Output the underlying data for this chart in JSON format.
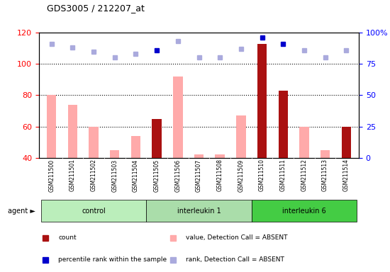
{
  "title": "GDS3005 / 212207_at",
  "samples": [
    "GSM211500",
    "GSM211501",
    "GSM211502",
    "GSM211503",
    "GSM211504",
    "GSM211505",
    "GSM211506",
    "GSM211507",
    "GSM211508",
    "GSM211509",
    "GSM211510",
    "GSM211511",
    "GSM211512",
    "GSM211513",
    "GSM211514"
  ],
  "groups": [
    {
      "label": "control",
      "start": 0,
      "end": 4,
      "color": "#bbeebb"
    },
    {
      "label": "interleukin 1",
      "start": 5,
      "end": 9,
      "color": "#aaddaa"
    },
    {
      "label": "interleukin 6",
      "start": 10,
      "end": 14,
      "color": "#44cc44"
    }
  ],
  "ylim_left": [
    40,
    120
  ],
  "ylim_right": [
    0,
    100
  ],
  "yticks_left": [
    40,
    60,
    80,
    100,
    120
  ],
  "yticks_right": [
    0,
    25,
    50,
    75,
    100
  ],
  "ytick_labels_right": [
    "0",
    "25",
    "50",
    "75",
    "100%"
  ],
  "count_bars": {
    "values": [
      null,
      null,
      null,
      null,
      null,
      65,
      null,
      null,
      null,
      null,
      113,
      83,
      null,
      null,
      60
    ],
    "color": "#aa1111"
  },
  "absent_value_bars": {
    "values": [
      80,
      74,
      60,
      45,
      54,
      null,
      92,
      42,
      42,
      67,
      null,
      null,
      60,
      45,
      null
    ],
    "color": "#ffaaaa"
  },
  "percentile_rank_dots": {
    "values": [
      null,
      null,
      null,
      null,
      null,
      86,
      null,
      null,
      null,
      null,
      96,
      91,
      null,
      null,
      null
    ],
    "color": "#0000cc"
  },
  "absent_rank_dots": {
    "values": [
      91,
      88,
      85,
      80,
      83,
      null,
      93,
      80,
      80,
      87,
      null,
      null,
      86,
      80,
      86
    ],
    "color": "#aaaadd"
  },
  "bar_width": 0.45,
  "legend_items": [
    {
      "label": "count",
      "color": "#aa1111"
    },
    {
      "label": "percentile rank within the sample",
      "color": "#0000cc"
    },
    {
      "label": "value, Detection Call = ABSENT",
      "color": "#ffaaaa"
    },
    {
      "label": "rank, Detection Call = ABSENT",
      "color": "#aaaadd"
    }
  ]
}
